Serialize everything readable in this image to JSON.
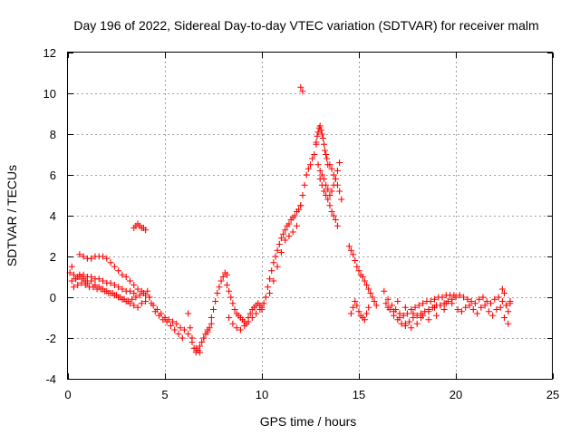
{
  "chart_data": {
    "type": "scatter",
    "title": "Day 196 of 2022, Sidereal Day-to-day VTEC variation (SDTVAR) for receiver malm",
    "xlabel": "GPS time / hours",
    "ylabel": "SDTVAR / TECUs",
    "xlim": [
      0,
      25
    ],
    "ylim": [
      -4,
      12
    ],
    "xticks": [
      0,
      5,
      10,
      15,
      20,
      25
    ],
    "yticks": [
      -4,
      -2,
      0,
      2,
      4,
      6,
      8,
      10,
      12
    ],
    "xtick_labels": [
      "0",
      "5",
      "10",
      "15",
      "20",
      "25"
    ],
    "ytick_labels": [
      "-4",
      "-2",
      "0",
      "2",
      "4",
      "6",
      "8",
      "10",
      "12"
    ],
    "grid": true,
    "marker": "+",
    "series": [
      {
        "name": "SDTVAR",
        "color": "#ff0000",
        "x": [
          0.1,
          0.2,
          0.3,
          0.4,
          0.5,
          0.6,
          0.7,
          0.8,
          0.9,
          1.0,
          1.2,
          1.4,
          1.6,
          1.8,
          2.0,
          2.2,
          2.4,
          2.6,
          2.8,
          3.0,
          3.2,
          3.4,
          3.6,
          3.8,
          4.0,
          0.2,
          0.4,
          0.6,
          0.8,
          1.0,
          1.2,
          1.4,
          1.6,
          1.8,
          2.0,
          2.2,
          2.4,
          2.6,
          2.8,
          3.0,
          3.2,
          3.4,
          0.6,
          0.8,
          1.0,
          1.2,
          1.4,
          1.6,
          1.8,
          2.0,
          2.2,
          2.4,
          2.6,
          2.8,
          3.0,
          3.2,
          3.4,
          3.6,
          3.8,
          4.0,
          4.2,
          0.3,
          0.5,
          0.7,
          0.9,
          1.1,
          1.3,
          1.5,
          1.7,
          1.9,
          2.1,
          2.3,
          2.5,
          2.7,
          2.9,
          3.1,
          3.3,
          3.5,
          3.7,
          3.9,
          4.1,
          3.4,
          3.5,
          3.6,
          3.7,
          3.8,
          3.9,
          4.0,
          4.2,
          4.4,
          4.6,
          4.8,
          5.0,
          5.2,
          5.4,
          5.6,
          5.8,
          6.0,
          6.2,
          4.3,
          4.5,
          4.7,
          4.9,
          5.1,
          5.3,
          5.5,
          5.7,
          5.9,
          6.2,
          6.3,
          6.4,
          6.5,
          6.6,
          6.7,
          6.8,
          6.9,
          7.0,
          7.1,
          7.2,
          7.3,
          7.4,
          6.4,
          6.6,
          6.8,
          7.0,
          7.2,
          7.4,
          7.5,
          7.6,
          7.7,
          7.8,
          7.9,
          8.0,
          8.1,
          8.2,
          8.2,
          8.3,
          8.4,
          8.5,
          8.6,
          8.7,
          8.8,
          8.9,
          9.0,
          9.1,
          9.2,
          9.3,
          9.4,
          9.5,
          9.6,
          9.7,
          9.8,
          9.9,
          10.0,
          8.3,
          8.5,
          8.7,
          8.9,
          9.1,
          9.3,
          9.5,
          9.7,
          9.9,
          10.0,
          10.1,
          10.2,
          10.3,
          10.4,
          10.5,
          10.6,
          10.7,
          10.8,
          10.9,
          11.0,
          11.1,
          11.2,
          11.3,
          11.4,
          11.5,
          11.6,
          11.7,
          11.8,
          11.9,
          12.0,
          10.4,
          10.6,
          10.8,
          11.0,
          11.2,
          11.4,
          11.6,
          11.8,
          12.0,
          12.1,
          12.0,
          12.1,
          12.2,
          12.3,
          12.4,
          12.5,
          12.6,
          12.7,
          12.8,
          12.8,
          12.85,
          12.9,
          12.95,
          13.0,
          13.05,
          13.1,
          13.15,
          13.2,
          13.25,
          13.3,
          13.35,
          13.4,
          12.9,
          13.0,
          13.1,
          13.2,
          13.3,
          13.4,
          13.5,
          13.6,
          13.7,
          13.8,
          13.9,
          14.0,
          13.0,
          13.1,
          13.2,
          13.3,
          13.4,
          13.5,
          13.6,
          13.7,
          13.8,
          13.9,
          13.5,
          13.6,
          13.7,
          13.8,
          13.9,
          14.0,
          14.1,
          14.5,
          14.6,
          14.7,
          14.8,
          14.9,
          15.0,
          15.1,
          15.2,
          15.3,
          15.4,
          15.5,
          15.6,
          15.7,
          15.8,
          15.9,
          14.6,
          14.7,
          14.8,
          14.9,
          15.0,
          15.1,
          15.2,
          15.3,
          15.4,
          15.5,
          16.3,
          16.5,
          16.7,
          16.9,
          17.1,
          17.3,
          17.5,
          17.7,
          17.9,
          18.1,
          18.3,
          18.5,
          18.7,
          18.9,
          19.1,
          19.3,
          19.5,
          19.7,
          19.9,
          16.4,
          16.6,
          16.8,
          17.0,
          17.2,
          17.4,
          17.6,
          17.8,
          18.0,
          18.2,
          18.4,
          18.6,
          18.8,
          19.0,
          19.2,
          19.4,
          19.6,
          19.8,
          16.5,
          16.8,
          17.1,
          17.4,
          17.7,
          18.0,
          18.3,
          18.6,
          18.9,
          19.2,
          19.5,
          17.0,
          17.4,
          17.8,
          18.2,
          18.6,
          19.0,
          19.4,
          19.8,
          20.0,
          20.2,
          20.4,
          20.6,
          20.8,
          21.0,
          21.2,
          21.4,
          21.6,
          21.8,
          22.0,
          22.2,
          22.4,
          22.6,
          22.8,
          20.1,
          20.3,
          20.5,
          20.7,
          20.9,
          21.1,
          21.3,
          21.5,
          21.7,
          21.9,
          22.1,
          22.3,
          22.5,
          22.7,
          22.4,
          22.5,
          22.6,
          22.7,
          22.8
        ],
        "y": [
          1.2,
          1.5,
          1.1,
          0.9,
          1.0,
          1.1,
          1.0,
          0.9,
          0.8,
          0.7,
          0.8,
          0.6,
          0.5,
          0.4,
          0.3,
          0.2,
          0.1,
          0.0,
          -0.1,
          -0.2,
          -0.3,
          -0.4,
          -0.5,
          -0.3,
          -0.2,
          0.8,
          0.9,
          1.0,
          1.1,
          1.0,
          1.0,
          0.9,
          0.9,
          0.8,
          0.7,
          0.7,
          0.6,
          0.5,
          0.4,
          0.3,
          0.3,
          0.2,
          2.1,
          2.0,
          1.9,
          1.9,
          2.0,
          2.0,
          2.0,
          1.9,
          1.7,
          1.5,
          1.3,
          1.1,
          1.0,
          0.8,
          0.6,
          0.4,
          0.3,
          0.1,
          0.0,
          0.5,
          0.6,
          0.7,
          0.6,
          0.5,
          0.5,
          0.4,
          0.4,
          0.3,
          0.2,
          0.2,
          0.1,
          0.0,
          -0.1,
          -0.2,
          -0.1,
          0.0,
          0.1,
          0.2,
          0.3,
          3.4,
          3.5,
          3.6,
          3.5,
          3.4,
          3.4,
          3.3,
          0.0,
          -0.4,
          -0.6,
          -0.8,
          -1.0,
          -1.1,
          -1.2,
          -1.3,
          -1.5,
          -1.6,
          -1.8,
          -0.3,
          -0.7,
          -0.9,
          -1.1,
          -1.2,
          -1.4,
          -1.6,
          -1.8,
          -2.0,
          -0.8,
          -1.5,
          -2.0,
          -2.5,
          -2.7,
          -2.6,
          -2.4,
          -2.2,
          -2.0,
          -1.8,
          -1.7,
          -1.5,
          -1.3,
          -2.2,
          -2.5,
          -2.7,
          -2.0,
          -1.6,
          -1.0,
          -0.6,
          -0.2,
          0.2,
          0.5,
          0.8,
          1.0,
          1.2,
          1.1,
          0.6,
          0.3,
          0.0,
          -0.3,
          -0.6,
          -0.8,
          -0.9,
          -1.0,
          -1.1,
          -1.2,
          -1.3,
          -1.0,
          -0.8,
          -0.6,
          -0.5,
          -0.4,
          -0.3,
          -0.4,
          -0.5,
          -1.0,
          -1.3,
          -1.5,
          -1.6,
          -1.4,
          -1.2,
          -1.0,
          -0.8,
          -0.6,
          -0.6,
          -0.3,
          0.0,
          0.5,
          0.9,
          1.3,
          1.7,
          2.0,
          2.3,
          2.6,
          2.9,
          3.1,
          3.3,
          3.5,
          3.6,
          3.8,
          3.9,
          4.0,
          4.2,
          4.3,
          4.5,
          0.2,
          0.8,
          1.5,
          2.2,
          2.8,
          3.0,
          3.2,
          3.5,
          10.3,
          10.1,
          4.5,
          5.0,
          5.5,
          6.0,
          6.3,
          6.5,
          6.8,
          7.0,
          7.5,
          7.6,
          7.9,
          8.1,
          8.3,
          8.4,
          8.2,
          8.0,
          7.8,
          7.5,
          7.2,
          7.0,
          6.8,
          6.5,
          6.5,
          6.2,
          6.0,
          5.8,
          5.5,
          5.3,
          5.0,
          5.2,
          5.5,
          5.8,
          6.2,
          6.6,
          5.8,
          5.5,
          5.2,
          5.0,
          4.8,
          4.5,
          4.2,
          4.0,
          3.8,
          3.5,
          6.5,
          6.3,
          6.0,
          5.8,
          5.5,
          5.2,
          4.8,
          2.5,
          2.3,
          2.1,
          1.8,
          1.5,
          1.3,
          1.1,
          1.0,
          0.8,
          0.6,
          0.4,
          0.2,
          0.0,
          -0.2,
          -0.4,
          -0.8,
          -0.5,
          -0.2,
          -0.4,
          -0.7,
          -0.9,
          -1.0,
          -1.1,
          -0.8,
          -0.5,
          0.3,
          -0.1,
          -0.4,
          -0.6,
          -0.8,
          -0.9,
          -0.8,
          -0.6,
          -0.5,
          -0.4,
          -0.3,
          -0.2,
          -0.2,
          -0.1,
          0.0,
          0.0,
          0.1,
          0.1,
          0.1,
          -0.3,
          -0.6,
          -0.9,
          -1.1,
          -1.3,
          -1.4,
          -1.2,
          -1.0,
          -0.9,
          -0.8,
          -0.7,
          -0.6,
          -0.5,
          -0.4,
          -0.4,
          -0.3,
          -0.2,
          -0.1,
          -0.5,
          -0.7,
          -1.0,
          -1.3,
          -1.5,
          -1.3,
          -0.9,
          -0.7,
          -0.5,
          -0.4,
          -0.3,
          -0.2,
          -0.5,
          -0.8,
          -1.0,
          -1.1,
          -0.9,
          -0.6,
          -0.3,
          0.0,
          0.1,
          0.0,
          -0.1,
          -0.2,
          -0.3,
          -0.1,
          0.0,
          -0.2,
          -0.3,
          -0.1,
          0.0,
          -0.2,
          -0.4,
          -0.3,
          -0.6,
          -0.7,
          -0.5,
          -0.4,
          -0.6,
          -0.8,
          -0.5,
          -0.4,
          -0.7,
          -0.9,
          -0.6,
          -0.5,
          -1.0,
          -0.7,
          0.4,
          0.2,
          -0.4,
          -1.3,
          -0.2
        ]
      }
    ]
  }
}
